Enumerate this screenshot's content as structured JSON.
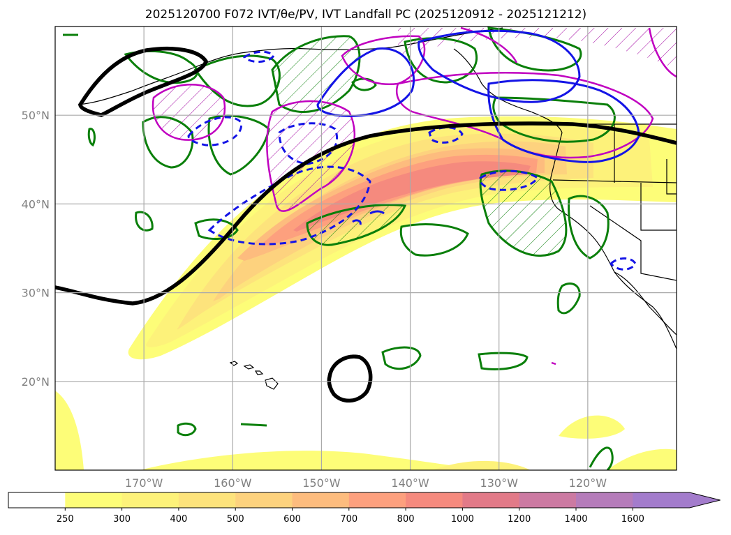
{
  "title": "2025120700 F072 IVT/θe/PV, IVT Landfall PC (2025120912 - 2025121212)",
  "map": {
    "lon_range": [
      -180,
      -110
    ],
    "lat_range": [
      10,
      60
    ],
    "lon_ticks": [
      {
        "lon": -170,
        "label": "170°W"
      },
      {
        "lon": -160,
        "label": "160°W"
      },
      {
        "lon": -150,
        "label": "150°W"
      },
      {
        "lon": -140,
        "label": "140°W"
      },
      {
        "lon": -130,
        "label": "130°W"
      },
      {
        "lon": -120,
        "label": "120°W"
      }
    ],
    "lat_ticks": [
      {
        "lat": 20,
        "label": "20°N"
      },
      {
        "lat": 30,
        "label": "30°N"
      },
      {
        "lat": 40,
        "label": "40°N"
      },
      {
        "lat": 50,
        "label": "50°N"
      }
    ],
    "grid": true,
    "line_colors": {
      "theta_e": "#000000",
      "pv": "#c000c0",
      "landfall_positive": "#0a7f0a",
      "landfall_negative": "#1414e6"
    }
  },
  "colorbar": {
    "levels": [
      250,
      300,
      400,
      500,
      600,
      700,
      800,
      1000,
      1200,
      1400,
      1600
    ],
    "colors": [
      "#ffffff",
      "#fdfd78",
      "#fdf27a",
      "#fde37c",
      "#fdd27e",
      "#fdbc7e",
      "#fda07e",
      "#f58a7e",
      "#e27a88",
      "#cc7aa2",
      "#b57cba",
      "#a37ccc"
    ],
    "extend": "max"
  }
}
